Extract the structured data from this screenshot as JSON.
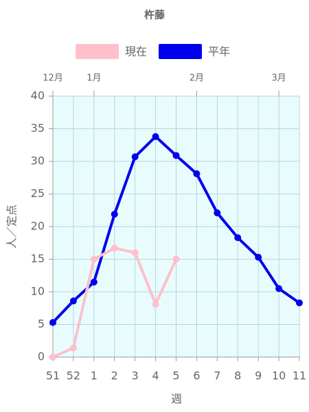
{
  "chart_data": {
    "type": "line",
    "title": "杵藤",
    "categories": [
      "51",
      "52",
      "1",
      "2",
      "3",
      "4",
      "5",
      "6",
      "7",
      "8",
      "9",
      "10",
      "11"
    ],
    "x2_categories": [
      "12月",
      null,
      "1月",
      null,
      null,
      null,
      null,
      "2月",
      null,
      null,
      null,
      "3月",
      null
    ],
    "x_label": "週",
    "y_label": "人／定点",
    "series": [
      {
        "name": "現在",
        "color": "#ffc0cb",
        "values": [
          0,
          1.4,
          15.0,
          16.7,
          16.0,
          8.1,
          15.0,
          null,
          null,
          null,
          null,
          null,
          null
        ]
      },
      {
        "name": "平年",
        "color": "#0000ee",
        "values": [
          5.3,
          8.6,
          11.5,
          21.9,
          30.7,
          33.8,
          30.9,
          28.1,
          22.1,
          18.3,
          15.3,
          10.5,
          8.3
        ]
      }
    ],
    "ylim": [
      0,
      40
    ],
    "yticks": [
      0,
      5,
      10,
      15,
      20,
      25,
      30,
      35,
      40
    ],
    "grid": true,
    "legend": "top"
  }
}
